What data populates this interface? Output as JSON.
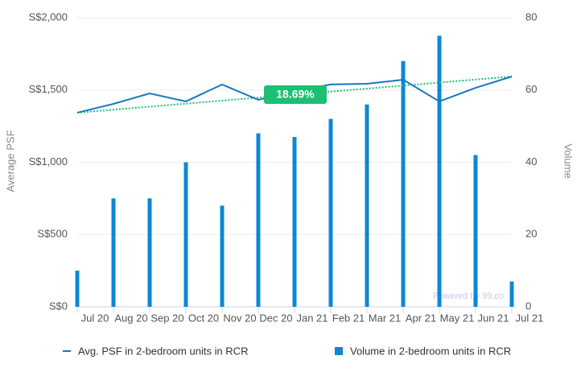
{
  "chart_data": {
    "type": "bar-line",
    "categories": [
      "Jul 20",
      "Aug 20",
      "Sep 20",
      "Oct 20",
      "Nov 20",
      "Dec 20",
      "Jan 21",
      "Feb 21",
      "Mar 21",
      "Apr 21",
      "May 21",
      "Jun 21",
      "Jul 21"
    ],
    "series": [
      {
        "name": "Avg. PSF in 2-bedroom units in RCR",
        "type": "line",
        "color": "#1478c4",
        "values": [
          1343,
          1404,
          1476,
          1421,
          1538,
          1432,
          1490,
          1538,
          1543,
          1571,
          1421,
          1515,
          1593
        ]
      },
      {
        "name": "Volume in 2-bedroom units in RCR",
        "type": "bar",
        "axis": "y2",
        "color": "#0b88d4",
        "values": [
          10,
          30,
          30,
          40,
          28,
          48,
          47,
          52,
          56,
          68,
          75,
          42,
          7
        ]
      }
    ],
    "ylabel": "Average PSF",
    "y2label": "Volume",
    "ylim": [
      0,
      2000
    ],
    "yticks": [
      {
        "value": 0,
        "label": "S$0"
      },
      {
        "value": 500,
        "label": "S$500"
      },
      {
        "value": 1000,
        "label": "S$1,000"
      },
      {
        "value": 1500,
        "label": "S$1,500"
      },
      {
        "value": 2000,
        "label": "S$2,000"
      }
    ],
    "y2lim": [
      0,
      80
    ],
    "y2ticks": [
      0,
      20,
      40,
      60,
      80
    ],
    "grid": true,
    "trendline": {
      "start": 1343,
      "end": 1593,
      "color": "#1dbf73"
    },
    "annotation": "18.69%",
    "watermark": "Powered by 99.co"
  }
}
